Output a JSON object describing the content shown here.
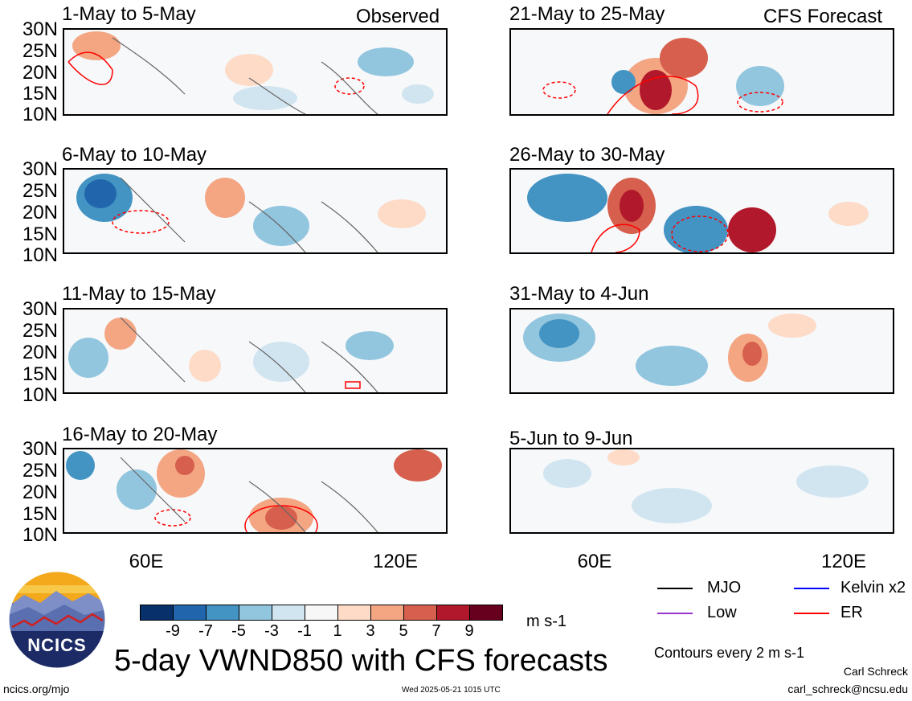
{
  "left_tag": "Observed",
  "right_tag": "CFS Forecast",
  "panels": [
    {
      "title": "1-May to 5-May"
    },
    {
      "title": "6-May to 10-May"
    },
    {
      "title": "11-May to 15-May"
    },
    {
      "title": "16-May to 20-May"
    },
    {
      "title": "21-May to 25-May"
    },
    {
      "title": "26-May to 30-May"
    },
    {
      "title": "31-May to 4-Jun"
    },
    {
      "title": "5-Jun to 9-Jun"
    }
  ],
  "y_ticks": [
    "30N",
    "25N",
    "20N",
    "15N",
    "10N"
  ],
  "x_ticks": [
    "60E",
    "120E"
  ],
  "colorbar": {
    "labels": [
      "-9",
      "-7",
      "-5",
      "-3",
      "-1",
      "1",
      "3",
      "5",
      "7",
      "9"
    ],
    "colors": [
      "#08306b",
      "#2166ac",
      "#4393c3",
      "#92c5de",
      "#d1e5f0",
      "#f7f7f7",
      "#fddbc7",
      "#f4a582",
      "#d6604d",
      "#b2182b",
      "#67001f"
    ],
    "units": "m s-1"
  },
  "legend": {
    "items": [
      {
        "label": "MJO",
        "color": "#000000"
      },
      {
        "label": "Kelvin x2",
        "color": "#0000ff"
      },
      {
        "label": "Low",
        "color": "#9933cc"
      },
      {
        "label": "ER",
        "color": "#ff0000"
      }
    ],
    "contours": "Contours every 2 m s-1"
  },
  "logo_text": "NCICS",
  "main_title": "5-day VWND850 with CFS forecasts",
  "footer": {
    "left": "ncics.org/mjo",
    "center": "Wed 2025-05-21 1015 UTC",
    "author": "Carl Schreck",
    "email": "carl_schreck@ncsu.edu"
  }
}
